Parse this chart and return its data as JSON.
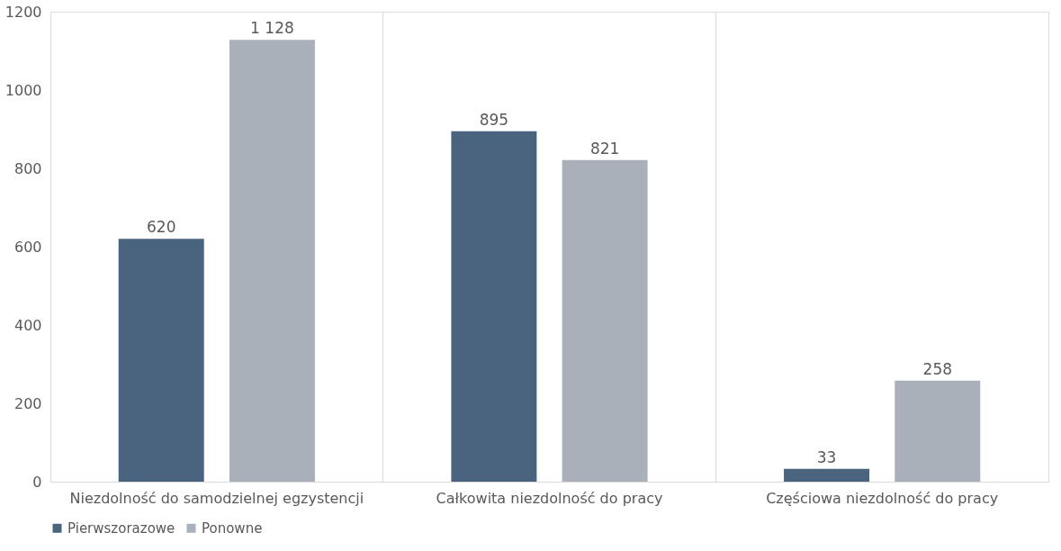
{
  "chart_data": {
    "type": "bar",
    "categories": [
      "Niezdolność do samodzielnej egzystencji",
      "Całkowita niezdolność do pracy",
      "Częściowa niezdolność do pracy"
    ],
    "series": [
      {
        "name": "Pierwszorazowe",
        "color": "#4a6480",
        "values": [
          620,
          895,
          33
        ],
        "value_labels": [
          "620",
          "895",
          "33"
        ]
      },
      {
        "name": "Ponowne",
        "color": "#a9b0ba",
        "values": [
          1128,
          821,
          258
        ],
        "value_labels": [
          "1 128",
          "821",
          "258"
        ]
      }
    ],
    "ylim": [
      0,
      1200
    ],
    "yticks": [
      0,
      200,
      400,
      600,
      800,
      1000,
      1200
    ],
    "grid": "x",
    "legend": "bottom"
  }
}
